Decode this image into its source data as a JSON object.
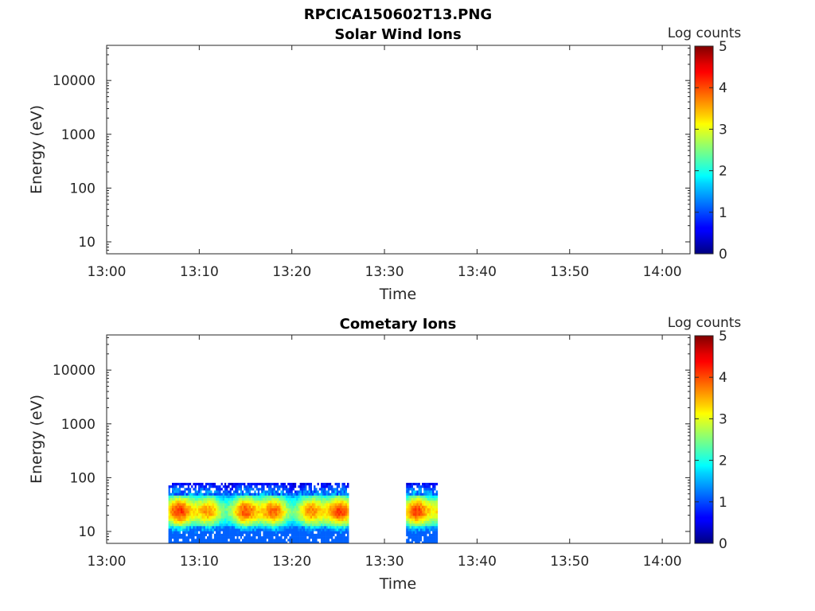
{
  "figure_title": "RPCICA150602T13.PNG",
  "chart_data": [
    {
      "type": "heatmap",
      "title": "Solar Wind Ions",
      "xlabel": "Time",
      "ylabel": "Energy (eV)",
      "x_ticks": [
        "13:00",
        "13:10",
        "13:20",
        "13:30",
        "13:40",
        "13:50",
        "14:00"
      ],
      "x_range": [
        "13:00",
        "14:03"
      ],
      "y_scale": "log",
      "y_ticks": [
        "10",
        "100",
        "1000",
        "10000"
      ],
      "y_range": [
        6,
        45000
      ],
      "colorbar": {
        "label": "Log counts",
        "ticks": [
          "0",
          "1",
          "2",
          "3",
          "4",
          "5"
        ],
        "range": [
          0,
          5
        ],
        "colormap": "jet"
      },
      "blocks": []
    },
    {
      "type": "heatmap",
      "title": "Cometary Ions",
      "xlabel": "Time",
      "ylabel": "Energy (eV)",
      "x_ticks": [
        "13:00",
        "13:10",
        "13:20",
        "13:30",
        "13:40",
        "13:50",
        "14:00"
      ],
      "x_range": [
        "13:00",
        "14:03"
      ],
      "y_scale": "log",
      "y_ticks": [
        "10",
        "100",
        "1000",
        "10000"
      ],
      "y_range": [
        6,
        45000
      ],
      "colorbar": {
        "label": "Log counts",
        "ticks": [
          "0",
          "1",
          "2",
          "3",
          "4",
          "5"
        ],
        "range": [
          0,
          5
        ],
        "colormap": "jet"
      },
      "blocks": [
        {
          "start": "13:06:40",
          "end": "13:26:00",
          "energy_range": [
            6,
            80
          ],
          "peak_log_counts": 4.3,
          "peak_energy": 25
        },
        {
          "start": "13:32:20",
          "end": "13:35:40",
          "energy_range": [
            6,
            80
          ],
          "peak_log_counts": 4.2,
          "peak_energy": 25
        }
      ]
    }
  ]
}
